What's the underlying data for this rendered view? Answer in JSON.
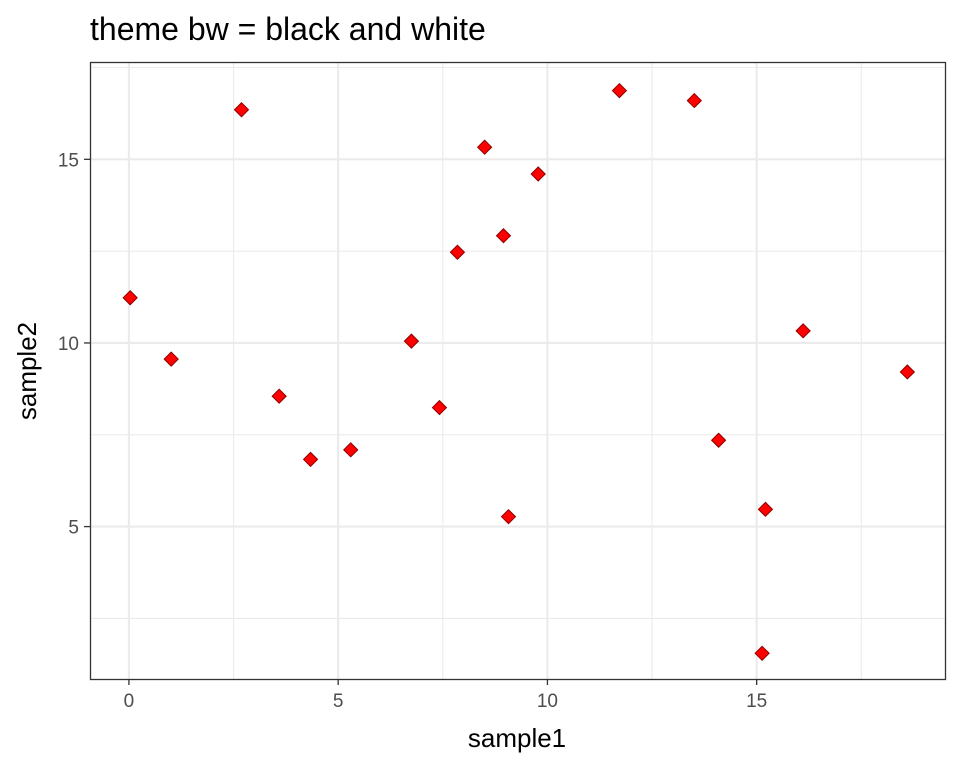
{
  "chart_data": {
    "type": "scatter",
    "title": "theme bw = black and white",
    "xlabel": "sample1",
    "ylabel": "sample2",
    "xlim": [
      -0.93,
      19.5
    ],
    "ylim": [
      0.85,
      17.65
    ],
    "x_ticks": [
      0,
      5,
      10,
      15
    ],
    "y_ticks": [
      5,
      10,
      15
    ],
    "x_minor": [
      2.5,
      7.5,
      12.5,
      17.5
    ],
    "y_minor": [
      2.5,
      7.5,
      12.5,
      17.5
    ],
    "grid": true,
    "marker": "diamond",
    "marker_color": "#ff0000",
    "marker_edge_color": "#8b0000",
    "x_tick_labels": [
      "0",
      "5",
      "10",
      "15"
    ],
    "y_tick_labels": [
      "5",
      "10",
      "15"
    ],
    "points": [
      {
        "x": 0.03,
        "y": 11.23
      },
      {
        "x": 1.01,
        "y": 9.56
      },
      {
        "x": 2.69,
        "y": 16.35
      },
      {
        "x": 3.59,
        "y": 8.55
      },
      {
        "x": 4.34,
        "y": 6.83
      },
      {
        "x": 5.3,
        "y": 7.09
      },
      {
        "x": 6.75,
        "y": 10.05
      },
      {
        "x": 7.42,
        "y": 8.24
      },
      {
        "x": 7.85,
        "y": 12.47
      },
      {
        "x": 8.5,
        "y": 15.33
      },
      {
        "x": 8.95,
        "y": 12.92
      },
      {
        "x": 9.07,
        "y": 5.27
      },
      {
        "x": 9.78,
        "y": 14.6
      },
      {
        "x": 11.72,
        "y": 16.87
      },
      {
        "x": 13.51,
        "y": 16.6
      },
      {
        "x": 14.09,
        "y": 7.35
      },
      {
        "x": 15.13,
        "y": 1.55
      },
      {
        "x": 15.21,
        "y": 5.47
      },
      {
        "x": 16.11,
        "y": 10.33
      },
      {
        "x": 18.6,
        "y": 9.21
      }
    ]
  }
}
